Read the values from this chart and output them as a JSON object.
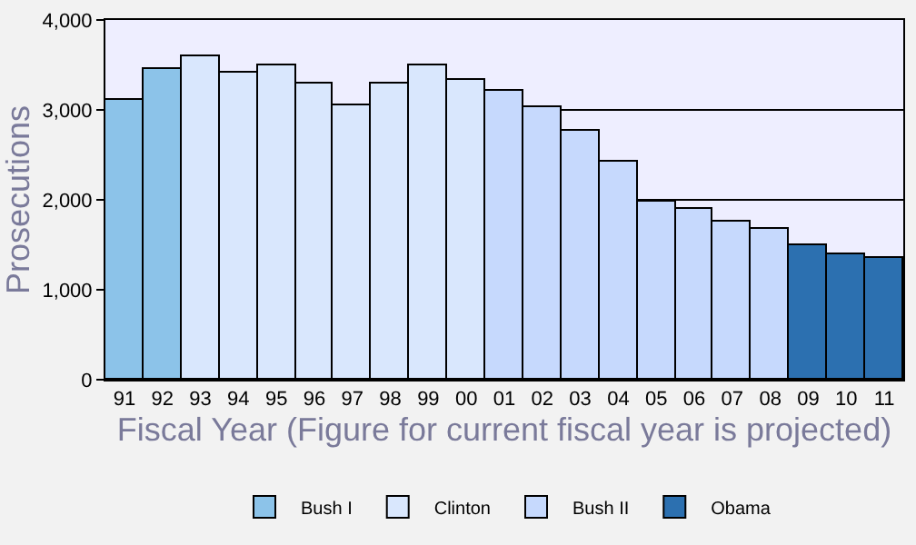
{
  "chart_data": {
    "type": "bar",
    "xlabel": "Fiscal Year (Figure for current fiscal year is projected)",
    "ylabel": "Prosecutions",
    "categories": [
      "91",
      "92",
      "93",
      "94",
      "95",
      "96",
      "97",
      "98",
      "99",
      "00",
      "01",
      "02",
      "03",
      "04",
      "05",
      "06",
      "07",
      "08",
      "09",
      "10",
      "11"
    ],
    "series": [
      {
        "name": "Bush I",
        "color": "#8cc3e9",
        "values": [
          3120,
          3450,
          null,
          null,
          null,
          null,
          null,
          null,
          null,
          null,
          null,
          null,
          null,
          null,
          null,
          null,
          null,
          null,
          null,
          null,
          null
        ]
      },
      {
        "name": "Clinton",
        "color": "#d9e7fd",
        "values": [
          null,
          null,
          3590,
          3415,
          3490,
          3295,
          3050,
          3295,
          3490,
          3335,
          null,
          null,
          null,
          null,
          null,
          null,
          null,
          null,
          null,
          null,
          null
        ]
      },
      {
        "name": "Bush II",
        "color": "#c6d9fd",
        "values": [
          null,
          null,
          null,
          null,
          null,
          null,
          null,
          null,
          null,
          null,
          3220,
          3030,
          2770,
          2420,
          1970,
          1900,
          1750,
          1680,
          null,
          null,
          null
        ]
      },
      {
        "name": "Obama",
        "color": "#2c70b0",
        "values": [
          null,
          null,
          null,
          null,
          null,
          null,
          null,
          null,
          null,
          null,
          null,
          null,
          null,
          null,
          null,
          null,
          null,
          null,
          1485,
          1390,
          1350
        ]
      }
    ],
    "ylim": [
      0,
      4000
    ],
    "yticks": [
      {
        "value": 0,
        "label": "0"
      },
      {
        "value": 1000,
        "label": "1,000"
      },
      {
        "value": 2000,
        "label": "2,000"
      },
      {
        "value": 3000,
        "label": "3,000"
      },
      {
        "value": 4000,
        "label": "4,000"
      }
    ],
    "grid": "y",
    "legend": "bottom"
  }
}
